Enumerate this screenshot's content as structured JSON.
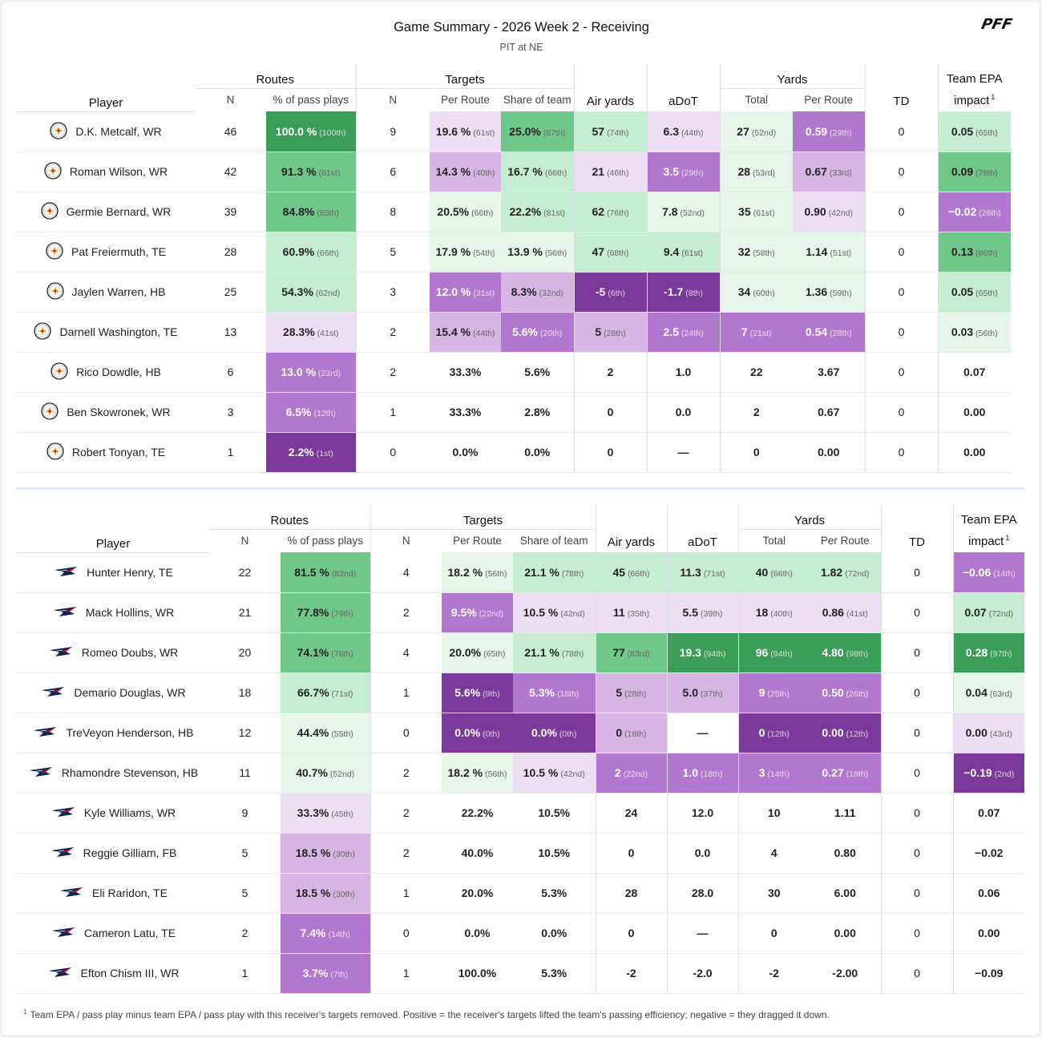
{
  "header": {
    "title": "Game Summary - 2026 Week 2 - Receiving",
    "subtitle": "PIT at NE",
    "brand": "PFF"
  },
  "columns": {
    "player": "Player",
    "routes": "Routes",
    "routes_n": "N",
    "routes_pct": "% of pass plays",
    "targets": "Targets",
    "targets_n": "N",
    "per_route": "Per Route",
    "share": "Share of team",
    "air_yards": "Air yards",
    "adot": "aDoT",
    "yards": "Yards",
    "yards_total": "Total",
    "yards_per_route": "Per Route",
    "td": "TD",
    "epa_line1": "Team EPA",
    "epa_line2": "impact",
    "epa_note": "1"
  },
  "colors": {
    "green_dark": "#3a9d58",
    "green_mid": "#6fc88a",
    "green_light": "#c6ecd2",
    "green_pale": "#e6f6eb",
    "purple_dark": "#7b3a9b",
    "purple_mid": "#b277cf",
    "purple_light": "#d6b5e3",
    "purple_pale": "#ecdff3"
  },
  "teams": [
    {
      "team": "PIT",
      "logo_icon": "steelers-logo-icon",
      "players": [
        {
          "name": "D.K. Metcalf, WR",
          "routes_n": "46",
          "routes_pct": [
            "100.0 %",
            "(100th)"
          ],
          "targets_n": "9",
          "per_route": [
            "19.6 %",
            "(61st)"
          ],
          "share": [
            "25.0%",
            "(87th)"
          ],
          "air": [
            "57",
            "(74th)"
          ],
          "adot": [
            "6.3",
            "(44th)"
          ],
          "ytot": [
            "27",
            "(52nd)"
          ],
          "ypr": [
            "0.59",
            "(29th)"
          ],
          "td": "0",
          "epa": [
            "0.05",
            "(65th)"
          ]
        },
        {
          "name": "Roman Wilson, WR",
          "routes_n": "42",
          "routes_pct": [
            "91.3 %",
            "(91st)"
          ],
          "targets_n": "6",
          "per_route": [
            "14.3 %",
            "(40th)"
          ],
          "share": [
            "16.7 %",
            "(66th)"
          ],
          "air": [
            "21",
            "(46th)"
          ],
          "adot": [
            "3.5",
            "(29th)"
          ],
          "ytot": [
            "28",
            "(53rd)"
          ],
          "ypr": [
            "0.67",
            "(33rd)"
          ],
          "td": "0",
          "epa": [
            "0.09",
            "(78th)"
          ]
        },
        {
          "name": "Germie Bernard, WR",
          "routes_n": "39",
          "routes_pct": [
            "84.8%",
            "(85th)"
          ],
          "targets_n": "8",
          "per_route": [
            "20.5%",
            "(66th)"
          ],
          "share": [
            "22.2%",
            "(81st)"
          ],
          "air": [
            "62",
            "(76th)"
          ],
          "adot": [
            "7.8",
            "(52nd)"
          ],
          "ytot": [
            "35",
            "(61st)"
          ],
          "ypr": [
            "0.90",
            "(42nd)"
          ],
          "td": "0",
          "epa": [
            "−0.02",
            "(26th)"
          ]
        },
        {
          "name": "Pat Freiermuth, TE",
          "routes_n": "28",
          "routes_pct": [
            "60.9%",
            "(66th)"
          ],
          "targets_n": "5",
          "per_route": [
            "17.9 %",
            "(54th)"
          ],
          "share": [
            "13.9 %",
            "(56th)"
          ],
          "air": [
            "47",
            "(68th)"
          ],
          "adot": [
            "9.4",
            "(61st)"
          ],
          "ytot": [
            "32",
            "(58th)"
          ],
          "ypr": [
            "1.14",
            "(51st)"
          ],
          "td": "0",
          "epa": [
            "0.13",
            "(86th)"
          ]
        },
        {
          "name": "Jaylen Warren, HB",
          "routes_n": "25",
          "routes_pct": [
            "54.3%",
            "(62nd)"
          ],
          "targets_n": "3",
          "per_route": [
            "12.0 %",
            "(31st)"
          ],
          "share": [
            "8.3%",
            "(32nd)"
          ],
          "air": [
            "-5",
            "(6th)"
          ],
          "adot": [
            "-1.7",
            "(8th)"
          ],
          "ytot": [
            "34",
            "(60th)"
          ],
          "ypr": [
            "1.36",
            "(59th)"
          ],
          "td": "0",
          "epa": [
            "0.05",
            "(65th)"
          ]
        },
        {
          "name": "Darnell Washington, TE",
          "routes_n": "13",
          "routes_pct": [
            "28.3%",
            "(41st)"
          ],
          "targets_n": "2",
          "per_route": [
            "15.4 %",
            "(44th)"
          ],
          "share": [
            "5.6%",
            "(20th)"
          ],
          "air": [
            "5",
            "(28th)"
          ],
          "adot": [
            "2.5",
            "(24th)"
          ],
          "ytot": [
            "7",
            "(21st)"
          ],
          "ypr": [
            "0.54",
            "(28th)"
          ],
          "td": "0",
          "epa": [
            "0.03",
            "(56th)"
          ]
        },
        {
          "name": "Rico Dowdle, HB",
          "routes_n": "6",
          "routes_pct": [
            "13.0 %",
            "(23rd)"
          ],
          "targets_n": "2",
          "per_route": [
            "33.3%",
            ""
          ],
          "share": [
            "5.6%",
            ""
          ],
          "air": [
            "2",
            ""
          ],
          "adot": [
            "1.0",
            ""
          ],
          "ytot": [
            "22",
            ""
          ],
          "ypr": [
            "3.67",
            ""
          ],
          "td": "0",
          "epa": [
            "0.07",
            ""
          ]
        },
        {
          "name": "Ben Skowronek, WR",
          "routes_n": "3",
          "routes_pct": [
            "6.5%",
            "(12th)"
          ],
          "targets_n": "1",
          "per_route": [
            "33.3%",
            ""
          ],
          "share": [
            "2.8%",
            ""
          ],
          "air": [
            "0",
            ""
          ],
          "adot": [
            "0.0",
            ""
          ],
          "ytot": [
            "2",
            ""
          ],
          "ypr": [
            "0.67",
            ""
          ],
          "td": "0",
          "epa": [
            "0.00",
            ""
          ]
        },
        {
          "name": "Robert Tonyan, TE",
          "routes_n": "1",
          "routes_pct": [
            "2.2%",
            "(1st)"
          ],
          "targets_n": "0",
          "per_route": [
            "0.0%",
            ""
          ],
          "share": [
            "0.0%",
            ""
          ],
          "air": [
            "0",
            ""
          ],
          "adot": [
            "—",
            ""
          ],
          "ytot": [
            "0",
            ""
          ],
          "ypr": [
            "0.00",
            ""
          ],
          "td": "0",
          "epa": [
            "0.00",
            ""
          ]
        }
      ]
    },
    {
      "team": "NE",
      "logo_icon": "patriots-logo-icon",
      "players": [
        {
          "name": "Hunter Henry, TE",
          "routes_n": "22",
          "routes_pct": [
            "81.5 %",
            "(82nd)"
          ],
          "targets_n": "4",
          "per_route": [
            "18.2 %",
            "(56th)"
          ],
          "share": [
            "21.1 %",
            "(78th)"
          ],
          "air": [
            "45",
            "(66th)"
          ],
          "adot": [
            "11.3",
            "(71st)"
          ],
          "ytot": [
            "40",
            "(66th)"
          ],
          "ypr": [
            "1.82",
            "(72nd)"
          ],
          "td": "0",
          "epa": [
            "−0.06",
            "(14th)"
          ]
        },
        {
          "name": "Mack Hollins, WR",
          "routes_n": "21",
          "routes_pct": [
            "77.8%",
            "(79th)"
          ],
          "targets_n": "2",
          "per_route": [
            "9.5%",
            "(22nd)"
          ],
          "share": [
            "10.5 %",
            "(42nd)"
          ],
          "air": [
            "11",
            "(35th)"
          ],
          "adot": [
            "5.5",
            "(39th)"
          ],
          "ytot": [
            "18",
            "(40th)"
          ],
          "ypr": [
            "0.86",
            "(41st)"
          ],
          "td": "0",
          "epa": [
            "0.07",
            "(72nd)"
          ]
        },
        {
          "name": "Romeo Doubs, WR",
          "routes_n": "20",
          "routes_pct": [
            "74.1%",
            "(76th)"
          ],
          "targets_n": "4",
          "per_route": [
            "20.0%",
            "(65th)"
          ],
          "share": [
            "21.1 %",
            "(78th)"
          ],
          "air": [
            "77",
            "(83rd)"
          ],
          "adot": [
            "19.3",
            "(94th)"
          ],
          "ytot": [
            "96",
            "(94th)"
          ],
          "ypr": [
            "4.80",
            "(98th)"
          ],
          "td": "0",
          "epa": [
            "0.28",
            "(97th)"
          ]
        },
        {
          "name": "Demario Douglas, WR",
          "routes_n": "18",
          "routes_pct": [
            "66.7%",
            "(71st)"
          ],
          "targets_n": "1",
          "per_route": [
            "5.6%",
            "(9th)"
          ],
          "share": [
            "5.3%",
            "(18th)"
          ],
          "air": [
            "5",
            "(28th)"
          ],
          "adot": [
            "5.0",
            "(37th)"
          ],
          "ytot": [
            "9",
            "(25th)"
          ],
          "ypr": [
            "0.50",
            "(26th)"
          ],
          "td": "0",
          "epa": [
            "0.04",
            "(63rd)"
          ]
        },
        {
          "name": "TreVeyon Henderson, HB",
          "routes_n": "12",
          "routes_pct": [
            "44.4%",
            "(55th)"
          ],
          "targets_n": "0",
          "per_route": [
            "0.0%",
            "(0th)"
          ],
          "share": [
            "0.0%",
            "(0th)"
          ],
          "air": [
            "0",
            "(18th)"
          ],
          "adot": [
            "—",
            ""
          ],
          "ytot": [
            "0",
            "(12th)"
          ],
          "ypr": [
            "0.00",
            "(12th)"
          ],
          "td": "0",
          "epa": [
            "0.00",
            "(43rd)"
          ]
        },
        {
          "name": "Rhamondre Stevenson, HB",
          "routes_n": "11",
          "routes_pct": [
            "40.7%",
            "(52nd)"
          ],
          "targets_n": "2",
          "per_route": [
            "18.2 %",
            "(56th)"
          ],
          "share": [
            "10.5 %",
            "(42nd)"
          ],
          "air": [
            "2",
            "(22nd)"
          ],
          "adot": [
            "1.0",
            "(18th)"
          ],
          "ytot": [
            "3",
            "(14th)"
          ],
          "ypr": [
            "0.27",
            "(18th)"
          ],
          "td": "0",
          "epa": [
            "−0.19",
            "(2nd)"
          ]
        },
        {
          "name": "Kyle Williams, WR",
          "routes_n": "9",
          "routes_pct": [
            "33.3%",
            "(45th)"
          ],
          "targets_n": "2",
          "per_route": [
            "22.2%",
            ""
          ],
          "share": [
            "10.5%",
            ""
          ],
          "air": [
            "24",
            ""
          ],
          "adot": [
            "12.0",
            ""
          ],
          "ytot": [
            "10",
            ""
          ],
          "ypr": [
            "1.11",
            ""
          ],
          "td": "0",
          "epa": [
            "0.07",
            ""
          ]
        },
        {
          "name": "Reggie Gilliam, FB",
          "routes_n": "5",
          "routes_pct": [
            "18.5 %",
            "(30th)"
          ],
          "targets_n": "2",
          "per_route": [
            "40.0%",
            ""
          ],
          "share": [
            "10.5%",
            ""
          ],
          "air": [
            "0",
            ""
          ],
          "adot": [
            "0.0",
            ""
          ],
          "ytot": [
            "4",
            ""
          ],
          "ypr": [
            "0.80",
            ""
          ],
          "td": "0",
          "epa": [
            "−0.02",
            ""
          ]
        },
        {
          "name": "Eli Raridon, TE",
          "routes_n": "5",
          "routes_pct": [
            "18.5 %",
            "(30th)"
          ],
          "targets_n": "1",
          "per_route": [
            "20.0%",
            ""
          ],
          "share": [
            "5.3%",
            ""
          ],
          "air": [
            "28",
            ""
          ],
          "adot": [
            "28.0",
            ""
          ],
          "ytot": [
            "30",
            ""
          ],
          "ypr": [
            "6.00",
            ""
          ],
          "td": "0",
          "epa": [
            "0.06",
            ""
          ]
        },
        {
          "name": "Cameron Latu, TE",
          "routes_n": "2",
          "routes_pct": [
            "7.4%",
            "(14th)"
          ],
          "targets_n": "0",
          "per_route": [
            "0.0%",
            ""
          ],
          "share": [
            "0.0%",
            ""
          ],
          "air": [
            "0",
            ""
          ],
          "adot": [
            "—",
            ""
          ],
          "ytot": [
            "0",
            ""
          ],
          "ypr": [
            "0.00",
            ""
          ],
          "td": "0",
          "epa": [
            "0.00",
            ""
          ]
        },
        {
          "name": "Efton Chism III, WR",
          "routes_n": "1",
          "routes_pct": [
            "3.7%",
            "(7th)"
          ],
          "targets_n": "1",
          "per_route": [
            "100.0%",
            ""
          ],
          "share": [
            "5.3%",
            ""
          ],
          "air": [
            "-2",
            ""
          ],
          "adot": [
            "-2.0",
            ""
          ],
          "ytot": [
            "-2",
            ""
          ],
          "ypr": [
            "-2.00",
            ""
          ],
          "td": "0",
          "epa": [
            "−0.09",
            ""
          ]
        }
      ]
    }
  ],
  "footnote": {
    "marker": "1",
    "text": "Team EPA / pass play minus team EPA / pass play with this receiver's targets removed. Positive = the receiver's targets lifted the team's passing efficiency; negative = they dragged it down."
  }
}
